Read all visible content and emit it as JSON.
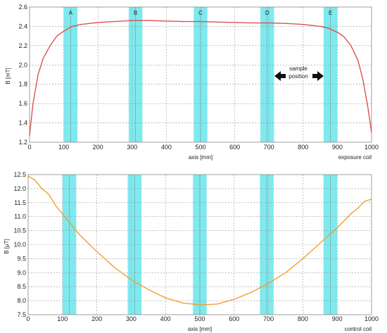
{
  "chart_data": [
    {
      "type": "line",
      "xlabel": "axis [mm]",
      "ylabel": "B [mT]",
      "xlim": [
        0,
        1000
      ],
      "ylim": [
        1.2,
        2.6
      ],
      "xticks": [
        "0",
        "100",
        "200",
        "300",
        "400",
        "500",
        "600",
        "700",
        "800",
        "900",
        "1000"
      ],
      "yticks": [
        "1.2",
        "1.4",
        "1.6",
        "1.8",
        "2.0",
        "2.2",
        "2.4",
        "2.6"
      ],
      "grid": true,
      "corner_label": "exposure coil",
      "line_color": "#d9534f",
      "band_color": "#7fe9ee",
      "bands": [
        {
          "label": "A",
          "from": 100,
          "to": 140,
          "center": 120
        },
        {
          "label": "B",
          "from": 290,
          "to": 330,
          "center": 310
        },
        {
          "label": "C",
          "from": 480,
          "to": 520,
          "center": 500
        },
        {
          "label": "D",
          "from": 675,
          "to": 715,
          "center": 695
        },
        {
          "label": "E",
          "from": 860,
          "to": 900,
          "center": 880
        }
      ],
      "annotation": {
        "line1": "sample",
        "line2": "position"
      },
      "x": [
        0,
        10,
        25,
        40,
        60,
        80,
        100,
        125,
        150,
        200,
        250,
        300,
        350,
        400,
        450,
        500,
        550,
        600,
        650,
        700,
        750,
        800,
        850,
        875,
        900,
        920,
        940,
        960,
        975,
        990,
        1000
      ],
      "y": [
        1.27,
        1.6,
        1.9,
        2.07,
        2.2,
        2.3,
        2.35,
        2.4,
        2.42,
        2.44,
        2.45,
        2.46,
        2.46,
        2.455,
        2.45,
        2.45,
        2.445,
        2.44,
        2.435,
        2.435,
        2.43,
        2.42,
        2.4,
        2.38,
        2.34,
        2.29,
        2.2,
        2.05,
        1.85,
        1.55,
        1.3
      ]
    },
    {
      "type": "line",
      "xlabel": "axis [mm]",
      "ylabel": "B [µT]",
      "xlim": [
        0,
        1000
      ],
      "ylim": [
        7.5,
        12.5
      ],
      "xticks": [
        "0",
        "100",
        "200",
        "300",
        "400",
        "500",
        "600",
        "700",
        "800",
        "900",
        "1000"
      ],
      "yticks": [
        "7.5",
        "8.0",
        "8.5",
        "9.0",
        "9.5",
        "10.0",
        "10.5",
        "11.0",
        "11.5",
        "12.0",
        "12.5"
      ],
      "grid": true,
      "corner_label": "control coil",
      "line_color": "#f0a030",
      "band_color": "#7fe9ee",
      "bands": [
        {
          "from": 100,
          "to": 140,
          "center": 120
        },
        {
          "from": 290,
          "to": 330,
          "center": 310
        },
        {
          "from": 480,
          "to": 520,
          "center": 500
        },
        {
          "from": 675,
          "to": 715,
          "center": 695
        },
        {
          "from": 860,
          "to": 900,
          "center": 880
        }
      ],
      "x": [
        0,
        20,
        40,
        60,
        80,
        100,
        150,
        200,
        250,
        300,
        350,
        400,
        450,
        500,
        550,
        600,
        650,
        700,
        750,
        800,
        850,
        900,
        940,
        960,
        980,
        1000
      ],
      "y": [
        12.45,
        12.3,
        12.0,
        11.8,
        11.4,
        11.1,
        10.35,
        9.75,
        9.2,
        8.75,
        8.4,
        8.1,
        7.92,
        7.85,
        7.88,
        8.05,
        8.3,
        8.62,
        9.0,
        9.5,
        10.05,
        10.6,
        11.1,
        11.3,
        11.55,
        11.62
      ]
    }
  ]
}
